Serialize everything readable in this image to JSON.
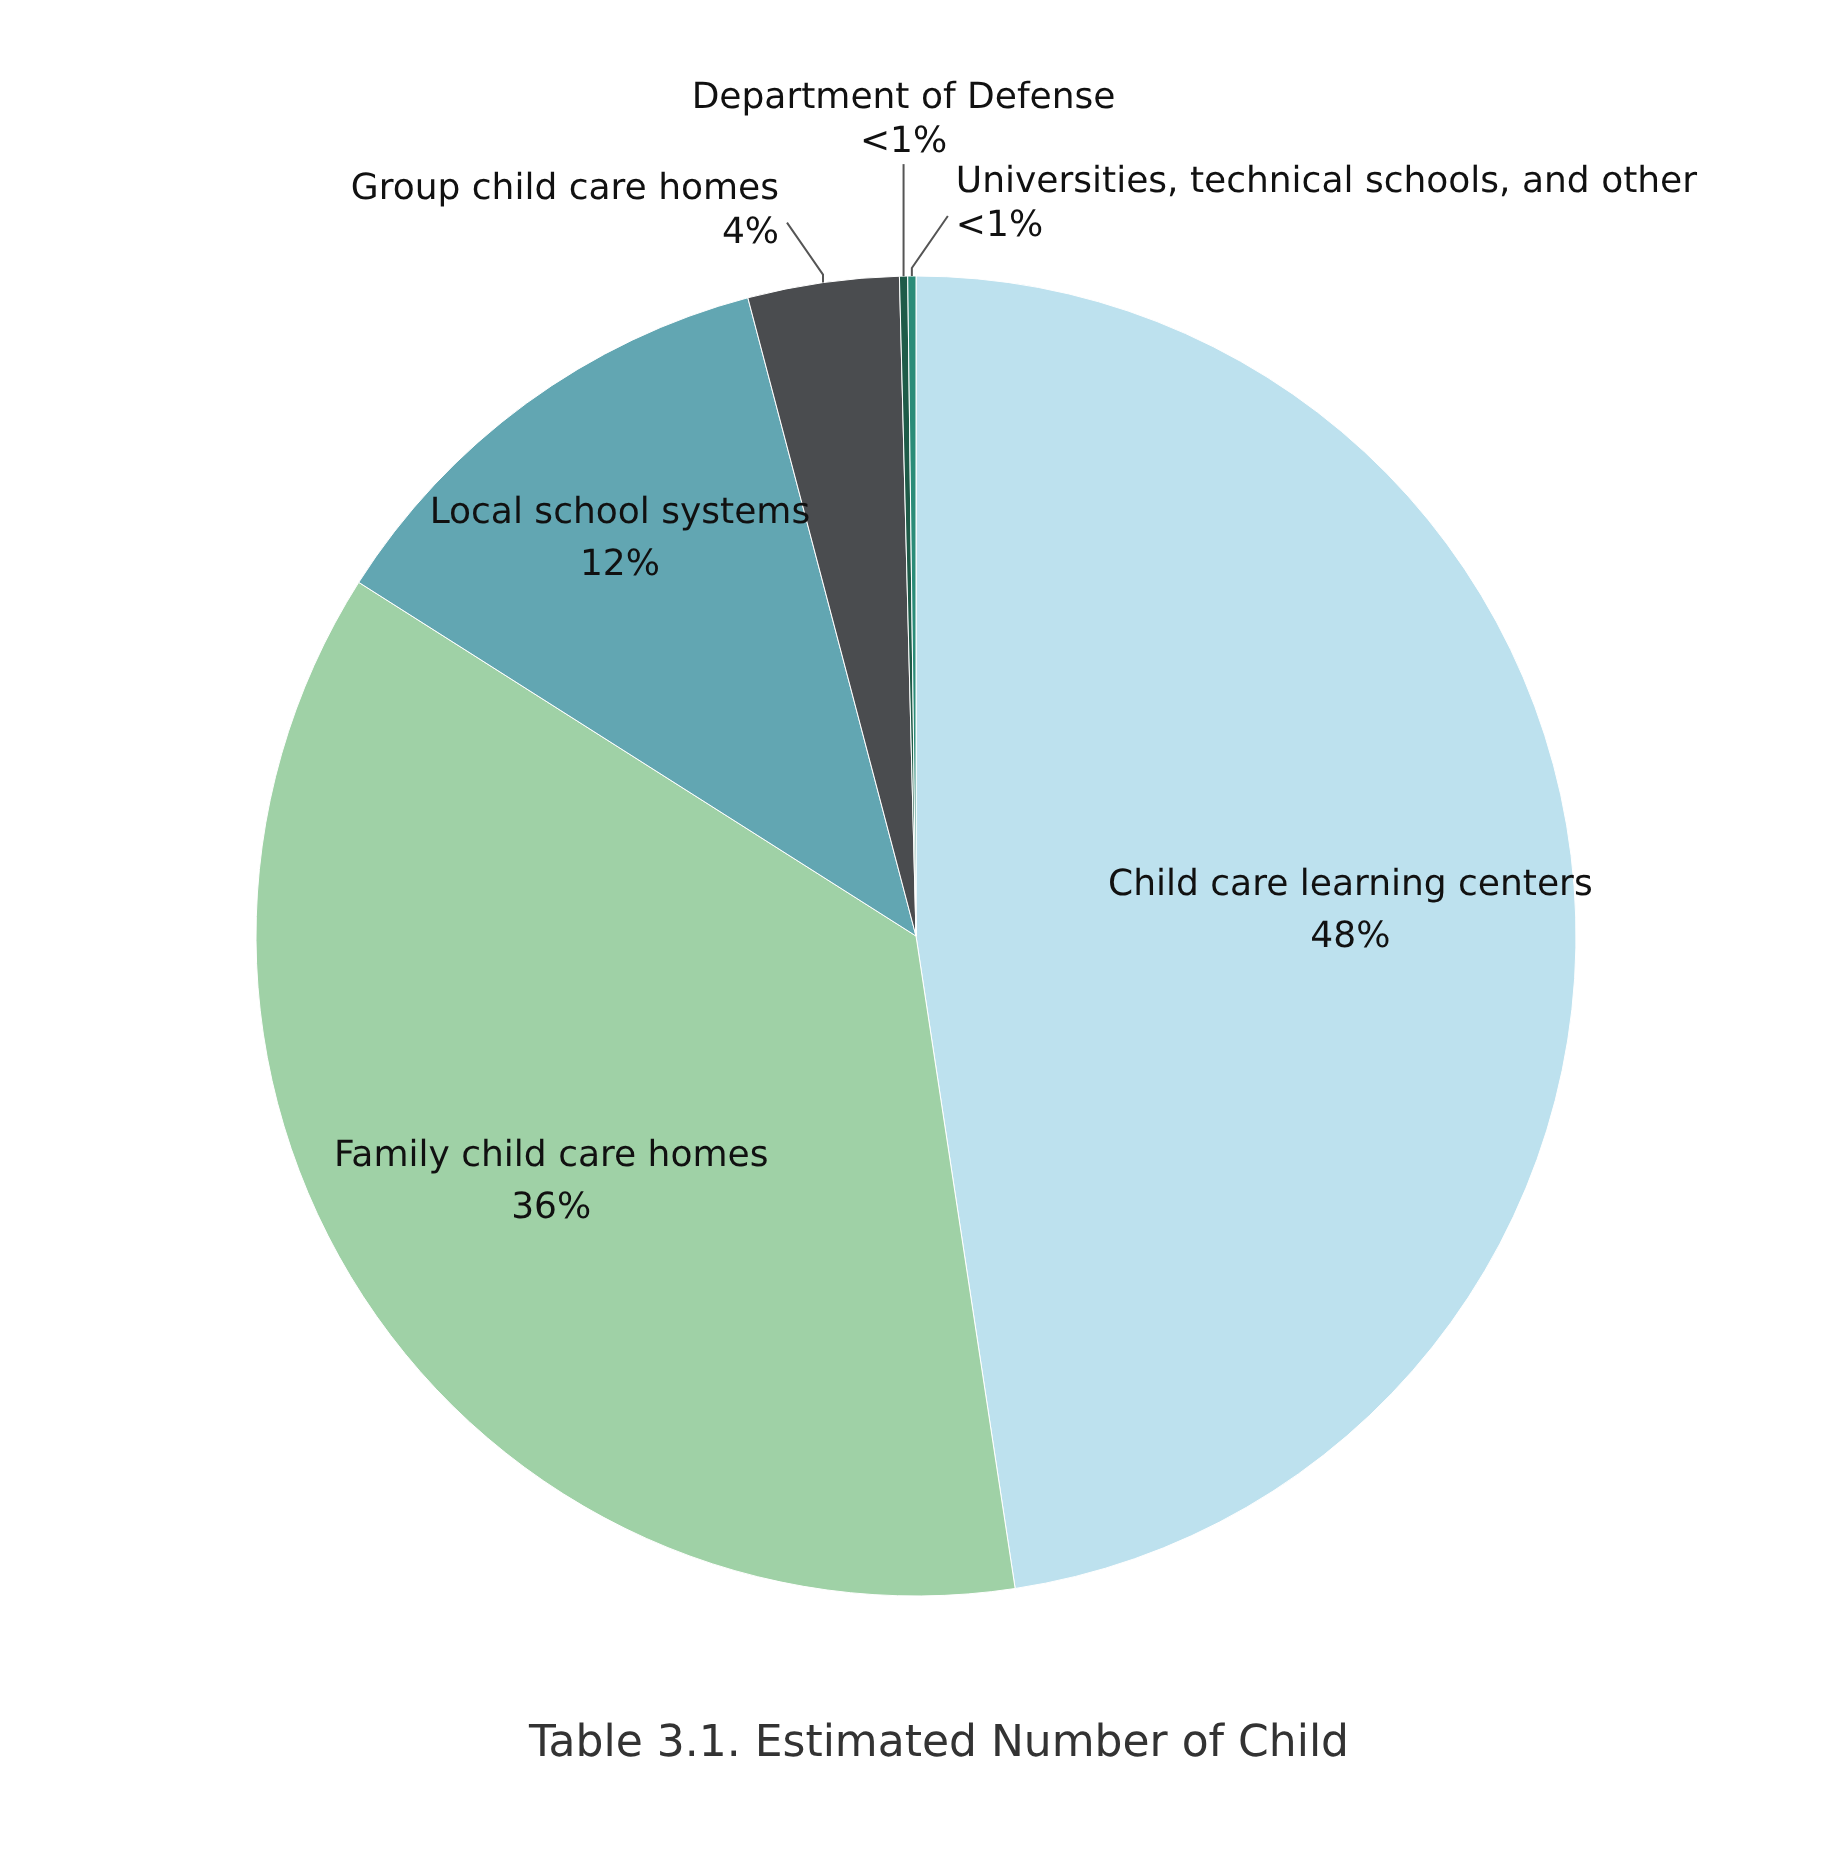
{
  "chart_data": {
    "type": "pie",
    "categories": [
      "Child care learning centers",
      "Family child care homes",
      "Local school systems",
      "Group child care homes",
      "Department of Defense",
      "Universities, technical schools, and other"
    ],
    "values": [
      47.6,
      36.4,
      11.9,
      3.7,
      0.2,
      0.2
    ],
    "value_labels": [
      "48%",
      "36%",
      "12%",
      "4%",
      "<1%",
      "<1%"
    ],
    "colors": [
      "#bde1ee",
      "#9fd1a6",
      "#62a6b2",
      "#4a4c4f",
      "#1e5b48",
      "#2b8c78"
    ],
    "annotations": [
      "Table 3.1. Estimated Number of Child"
    ]
  }
}
